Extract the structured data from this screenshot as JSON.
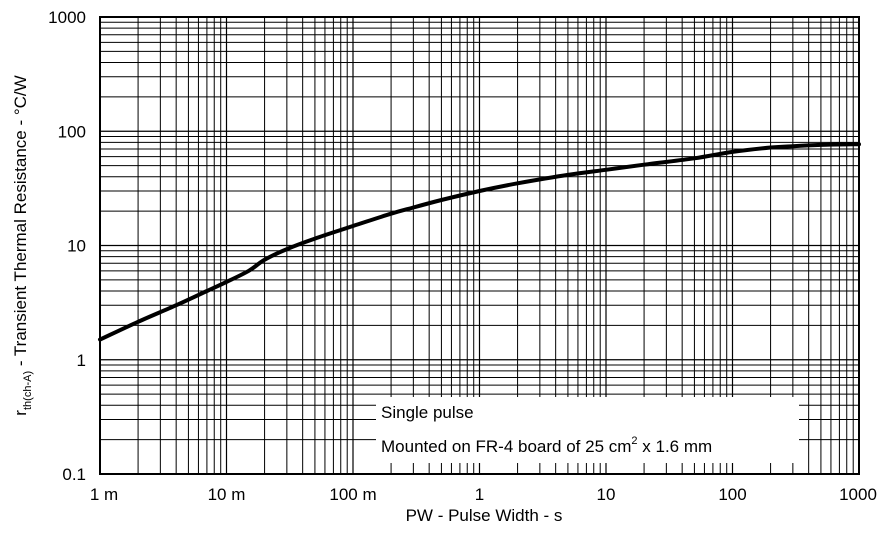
{
  "chart_data": {
    "type": "line",
    "x_scale": "log",
    "y_scale": "log",
    "xlim": [
      0.001,
      1000
    ],
    "ylim": [
      0.1,
      1000
    ],
    "grid": true,
    "xlabel": "PW - Pulse Width - s",
    "ylabel": {
      "symbol": "r",
      "subscript": "th(ch-A)",
      "rest": " - Transient Thermal Resistance - °C/W"
    },
    "x_ticks": [
      {
        "value": 0.001,
        "label": "1 m"
      },
      {
        "value": 0.01,
        "label": "10 m"
      },
      {
        "value": 0.1,
        "label": "100 m"
      },
      {
        "value": 1,
        "label": "1"
      },
      {
        "value": 10,
        "label": "10"
      },
      {
        "value": 100,
        "label": "100"
      },
      {
        "value": 1000,
        "label": "1000"
      }
    ],
    "y_ticks": [
      {
        "value": 0.1,
        "label": "0.1"
      },
      {
        "value": 1,
        "label": "1"
      },
      {
        "value": 10,
        "label": "10"
      },
      {
        "value": 100,
        "label": "100"
      },
      {
        "value": 1000,
        "label": "1000"
      }
    ],
    "annotations": {
      "line1": "Single pulse",
      "line2_before": "Mounted on FR-4 board of 25 cm",
      "line2_sup": "2",
      "line2_after": " x 1.6 mm"
    },
    "series": [
      {
        "x": [
          0.001,
          0.002,
          0.004,
          0.007,
          0.01,
          0.015,
          0.02,
          0.03,
          0.05,
          0.1,
          0.2,
          0.3,
          0.5,
          1,
          2,
          5,
          10,
          20,
          50,
          100,
          200,
          300,
          500,
          1000
        ],
        "y": [
          1.5,
          2.15,
          3.0,
          4.0,
          4.8,
          6.0,
          7.5,
          9.3,
          11.5,
          14.8,
          19.0,
          21.5,
          25.0,
          30.0,
          35.0,
          41.5,
          46.0,
          51.0,
          58.0,
          66.0,
          72.0,
          74.0,
          76.0,
          77.0
        ]
      }
    ]
  }
}
